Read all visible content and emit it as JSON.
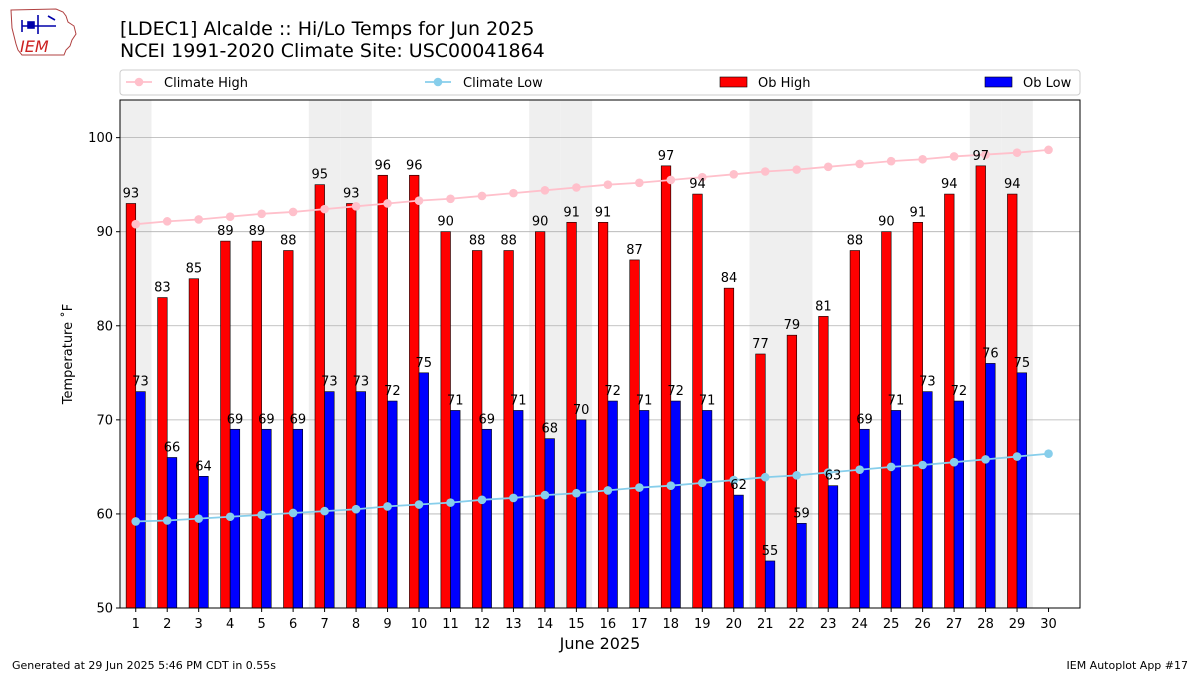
{
  "header": {
    "title_line1": "[LDEC1] Alcalde :: Hi/Lo Temps for Jun 2025",
    "title_line2": "NCEI 1991-2020 Climate Site: USC00041864"
  },
  "logo": {
    "text": "IEM"
  },
  "footer": {
    "left": "Generated at 29 Jun 2025 5:46 PM CDT in 0.55s",
    "right": "IEM Autoplot App #17"
  },
  "colors": {
    "ob_high": "#ff0000",
    "ob_low": "#0000ff",
    "climate_high": "#ffc0cb",
    "climate_low": "#87ceeb",
    "weekend_band": "#efefef",
    "grid": "#b0b0b0"
  },
  "chart_data": {
    "type": "bar",
    "xlabel": "June 2025",
    "ylabel": "Temperature ˚F",
    "ylim": [
      50,
      104
    ],
    "yticks": [
      50,
      60,
      70,
      80,
      90,
      100
    ],
    "grid": true,
    "legend_position": "top",
    "categories": [
      "1",
      "2",
      "3",
      "4",
      "5",
      "6",
      "7",
      "8",
      "9",
      "10",
      "11",
      "12",
      "13",
      "14",
      "15",
      "16",
      "17",
      "18",
      "19",
      "20",
      "21",
      "22",
      "23",
      "24",
      "25",
      "26",
      "27",
      "28",
      "29",
      "30"
    ],
    "weekend_days": [
      1,
      7,
      8,
      14,
      15,
      21,
      22,
      28,
      29
    ],
    "series": [
      {
        "name": "Ob High",
        "kind": "bar",
        "values": [
          93,
          83,
          85,
          89,
          89,
          88,
          95,
          93,
          96,
          96,
          90,
          88,
          88,
          90,
          91,
          91,
          87,
          97,
          94,
          84,
          77,
          79,
          81,
          88,
          90,
          91,
          94,
          97,
          94,
          null
        ]
      },
      {
        "name": "Ob Low",
        "kind": "bar",
        "values": [
          73,
          66,
          64,
          69,
          69,
          69,
          73,
          73,
          72,
          75,
          71,
          69,
          71,
          68,
          70,
          72,
          71,
          72,
          71,
          62,
          55,
          59,
          63,
          69,
          71,
          73,
          72,
          76,
          75,
          null
        ]
      },
      {
        "name": "Climate High",
        "kind": "line",
        "values": [
          90.8,
          91.1,
          91.3,
          91.6,
          91.9,
          92.1,
          92.4,
          92.7,
          93.0,
          93.3,
          93.5,
          93.8,
          94.1,
          94.4,
          94.7,
          95.0,
          95.2,
          95.5,
          95.8,
          96.1,
          96.4,
          96.6,
          96.9,
          97.2,
          97.5,
          97.7,
          98.0,
          98.2,
          98.4,
          98.7
        ]
      },
      {
        "name": "Climate Low",
        "kind": "line",
        "values": [
          59.2,
          59.3,
          59.5,
          59.7,
          59.9,
          60.1,
          60.3,
          60.5,
          60.8,
          61.0,
          61.2,
          61.5,
          61.7,
          62.0,
          62.2,
          62.5,
          62.8,
          63.0,
          63.3,
          63.6,
          63.9,
          64.1,
          64.4,
          64.7,
          65.0,
          65.2,
          65.5,
          65.8,
          66.1,
          66.4
        ]
      }
    ]
  }
}
